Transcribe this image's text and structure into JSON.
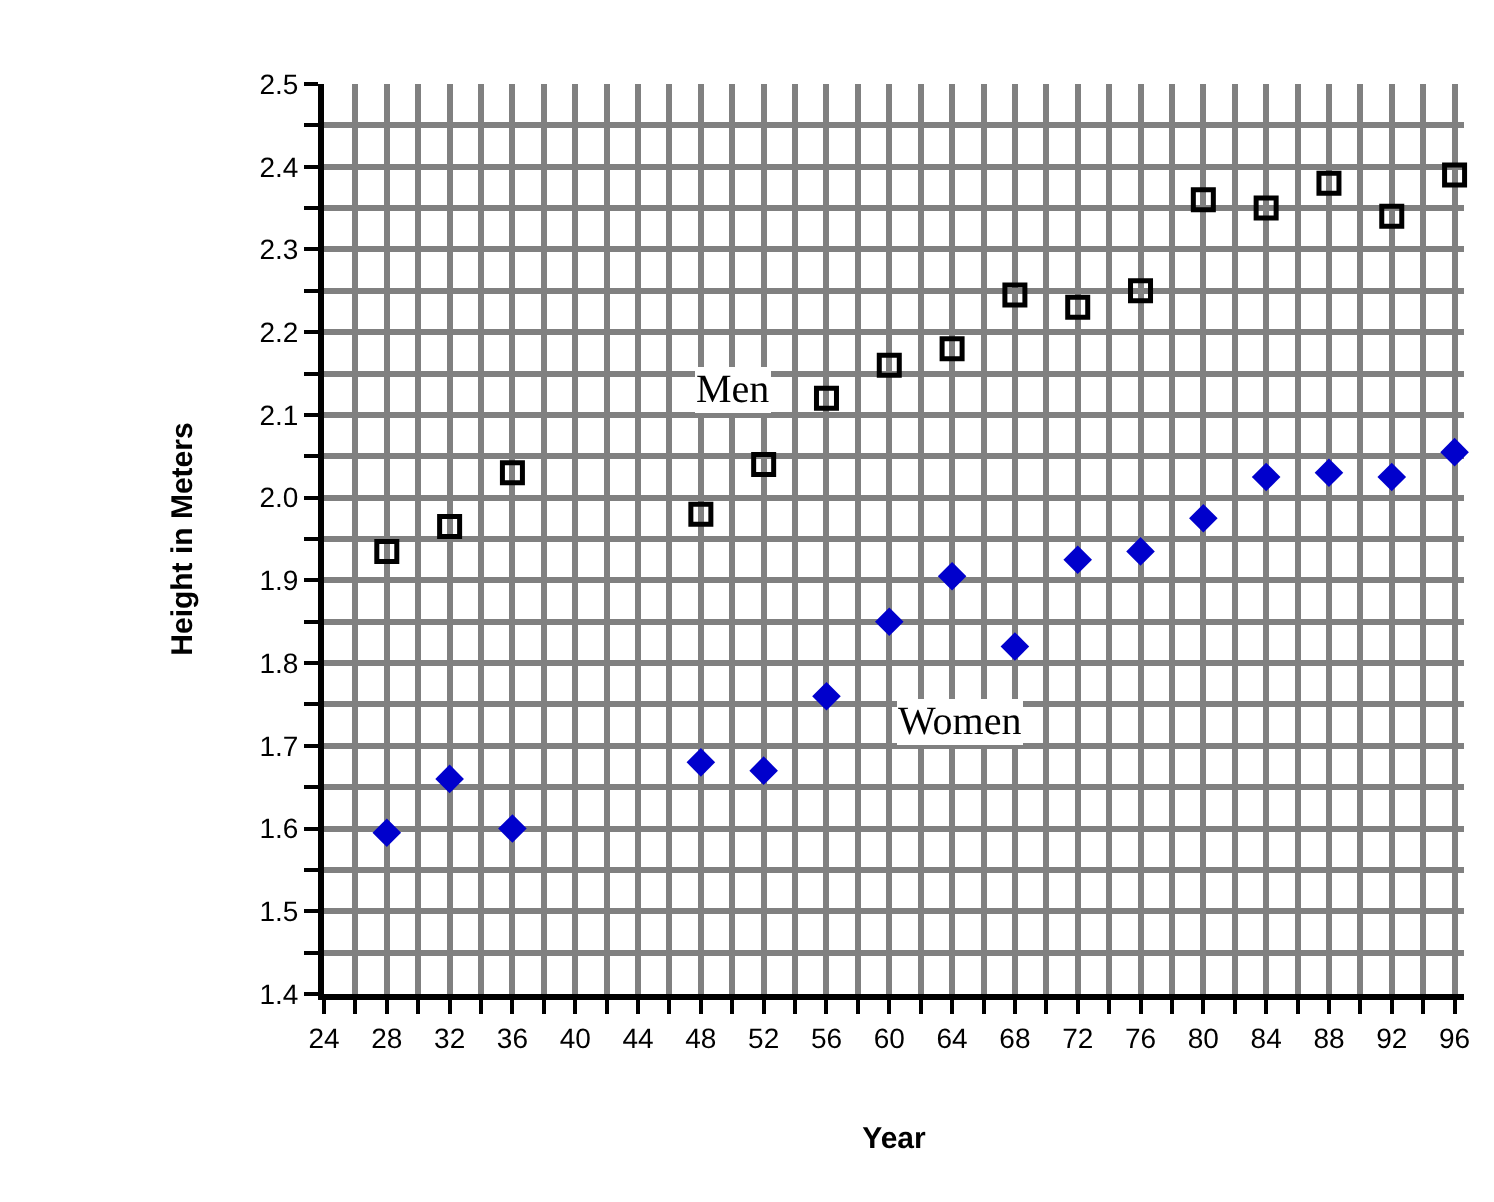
{
  "chart_data": {
    "type": "scatter",
    "xlabel": "Year",
    "ylabel": "Height in Meters",
    "x": [
      28,
      32,
      36,
      48,
      52,
      56,
      60,
      64,
      68,
      72,
      76,
      80,
      84,
      88,
      92,
      96
    ],
    "series": [
      {
        "color": "#000000",
        "marker": "square",
        "values": [
          1.935,
          1.965,
          2.03,
          1.98,
          2.04,
          2.12,
          2.16,
          2.18,
          2.245,
          2.23,
          2.25,
          2.36,
          2.35,
          2.38,
          2.34,
          2.39
        ]
      },
      {
        "color": "#0000cc",
        "marker": "diamond",
        "values": [
          1.595,
          1.66,
          1.6,
          1.68,
          1.67,
          1.76,
          1.85,
          1.905,
          1.82,
          1.925,
          1.935,
          1.975,
          2.025,
          2.03,
          2.025,
          2.055
        ]
      }
    ],
    "annotations": [
      "Men",
      "Women"
    ],
    "xlim": [
      24,
      96.6
    ],
    "ylim": [
      1.4,
      2.5
    ],
    "xticks": [
      24,
      {
        "value": 26,
        "label": null
      },
      28,
      {
        "value": 30,
        "label": null
      },
      32,
      {
        "value": 34,
        "label": null
      },
      36,
      {
        "value": 38,
        "label": null
      },
      40,
      {
        "value": 42,
        "label": null
      },
      44,
      {
        "value": 46,
        "label": null
      },
      48,
      {
        "value": 50,
        "label": null
      },
      52,
      {
        "value": 54,
        "label": null
      },
      56,
      {
        "value": 58,
        "label": null
      },
      60,
      {
        "value": 62,
        "label": null
      },
      64,
      {
        "value": 66,
        "label": null
      },
      68,
      {
        "value": 70,
        "label": null
      },
      72,
      {
        "value": 74,
        "label": null
      },
      76,
      {
        "value": 78,
        "label": null
      },
      80,
      {
        "value": 82,
        "label": null
      },
      84,
      {
        "value": 86,
        "label": null
      },
      88,
      {
        "value": 90,
        "label": null
      },
      92,
      {
        "value": 94,
        "label": null
      },
      96
    ],
    "yticks": [
      1.4,
      {
        "value": 1.45,
        "label": null
      },
      1.5,
      {
        "value": 1.55,
        "label": null
      },
      1.6,
      {
        "value": 1.65,
        "label": null
      },
      1.7,
      {
        "value": 1.75,
        "label": null
      },
      1.8,
      {
        "value": 1.85,
        "label": null
      },
      1.9,
      {
        "value": 1.95,
        "label": null
      },
      {
        "value": 2.0,
        "label": "2.0"
      },
      {
        "value": 2.05,
        "label": null
      },
      2.1,
      {
        "value": 2.15,
        "label": null
      },
      2.2,
      {
        "value": 2.25,
        "label": null
      },
      2.3,
      {
        "value": 2.35,
        "label": null
      },
      2.4,
      {
        "value": 2.45,
        "label": null
      },
      2.5
    ],
    "grid": true
  }
}
